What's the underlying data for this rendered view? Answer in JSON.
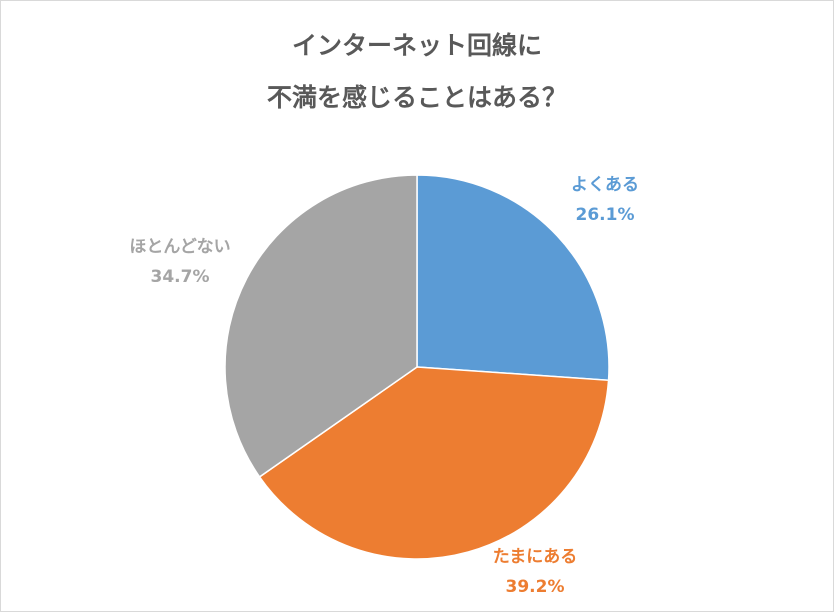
{
  "chart_data": {
    "type": "pie",
    "title": [
      "インターネット回線に",
      "不満を感じることはある？"
    ],
    "categories": [
      "よくある",
      "たまにある",
      "ほとんどない"
    ],
    "values": [
      26.1,
      39.2,
      34.7
    ],
    "value_labels": [
      "26.1%",
      "39.2%",
      "34.7%"
    ],
    "colors": [
      "#5b9bd5",
      "#ed7d31",
      "#a5a5a5"
    ]
  }
}
